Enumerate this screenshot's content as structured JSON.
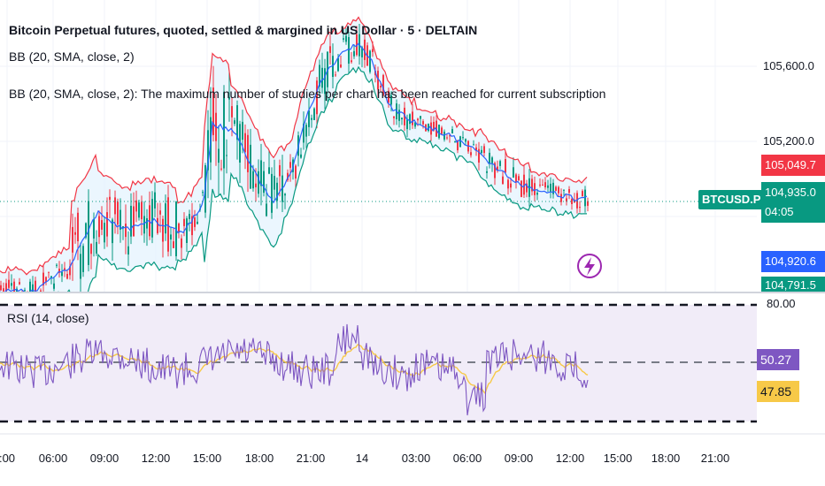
{
  "header": {
    "title": "Bitcoin Perpetual futures, quoted, settled & margined in US Dollar · 5 · DELTAIN",
    "indicator_1": "BB (20, SMA, close, 2)",
    "indicator_2": "BB (20, SMA, close, 2): The maximum number of studies per chart has been reached for current subscription"
  },
  "rsi_pane": {
    "label": "RSI (14, close)",
    "levels": [
      "80.00"
    ],
    "rsi_value": "50.27",
    "ma_value": "47.85"
  },
  "price_axis": {
    "ticks": [
      "105,600.0",
      "105,200.0"
    ],
    "symbol_badge": "BTCUSD.P",
    "badges": {
      "upper_band": "105,049.7",
      "last_price": "104,935.0",
      "countdown": "04:05",
      "basis": "104,920.6",
      "lower_band": "104,791.5"
    }
  },
  "time_axis": {
    "ticks": [
      ":00",
      "06:00",
      "09:00",
      "12:00",
      "15:00",
      "18:00",
      "21:00",
      "14",
      "03:00",
      "06:00",
      "09:00",
      "12:00",
      "15:00",
      "18:00",
      "21:00"
    ]
  },
  "colors": {
    "upper_band": "#f23645",
    "lower_band": "#089981",
    "basis": "#2962ff",
    "candle_up": "#089981",
    "candle_down": "#f23645",
    "rsi_line": "#7e57c2",
    "rsi_ma": "#f7c948",
    "rsi_bg": "#ede7f6",
    "band_fill": "#e3f2fd",
    "price_line": "#089981",
    "badge_blue": "#2962ff",
    "badge_red": "#f23645",
    "badge_green": "#089981",
    "badge_purple": "#7e57c2",
    "badge_yellow": "#f7c948"
  },
  "icons": {
    "alert": "lightning-icon"
  }
}
